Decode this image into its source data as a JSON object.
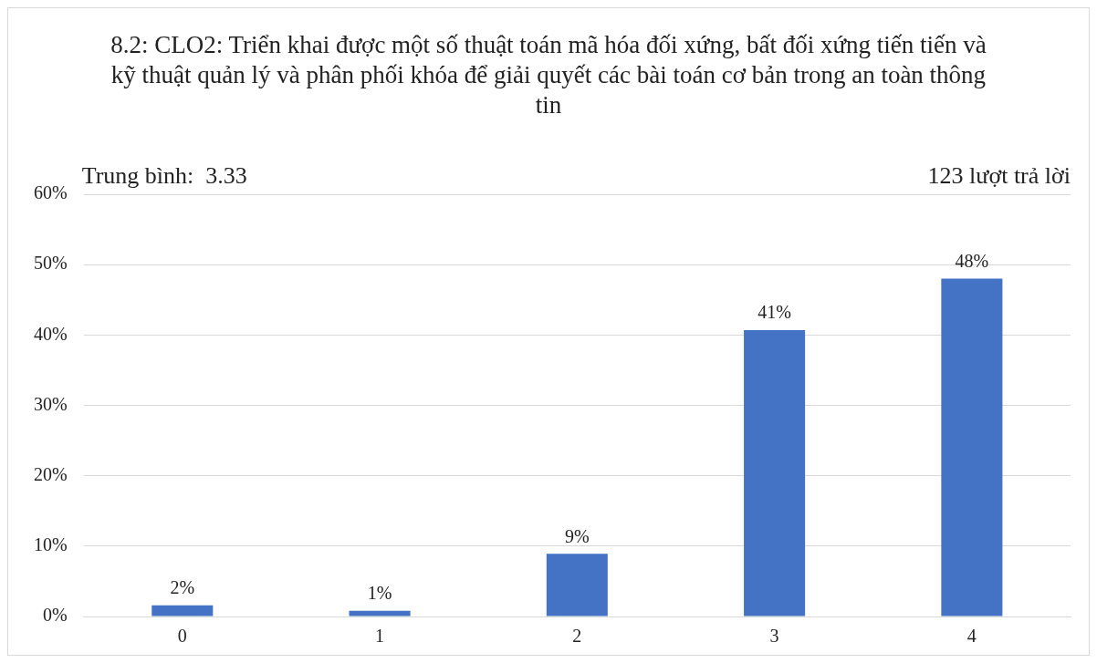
{
  "chart_data": {
    "type": "bar",
    "title": "8.2: CLO2: Triển khai được một số thuật toán mã hóa đối xứng, bất đối xứng tiến tiến và kỹ thuật quản lý và phân phối khóa để giải quyết các bài toán cơ bản trong an toàn thông tin",
    "annotations": [
      "Trung bình:  3.33",
      "123 lượt trả lời"
    ],
    "categories": [
      "0",
      "1",
      "2",
      "3",
      "4"
    ],
    "values": [
      1.6,
      0.8,
      8.9,
      40.7,
      48
    ],
    "value_labels": [
      "2%",
      "1%",
      "9%",
      "41%",
      "48%"
    ],
    "color": "#4472c4",
    "ylim": [
      0,
      60
    ],
    "yticks": [
      {
        "value": 0,
        "label": "0%"
      },
      {
        "value": 10,
        "label": "10%"
      },
      {
        "value": 20,
        "label": "20%"
      },
      {
        "value": 30,
        "label": "30%"
      },
      {
        "value": 40,
        "label": "40%"
      },
      {
        "value": 50,
        "label": "50%"
      },
      {
        "value": 60,
        "label": "60%"
      }
    ],
    "grid": "y",
    "legend": false
  }
}
